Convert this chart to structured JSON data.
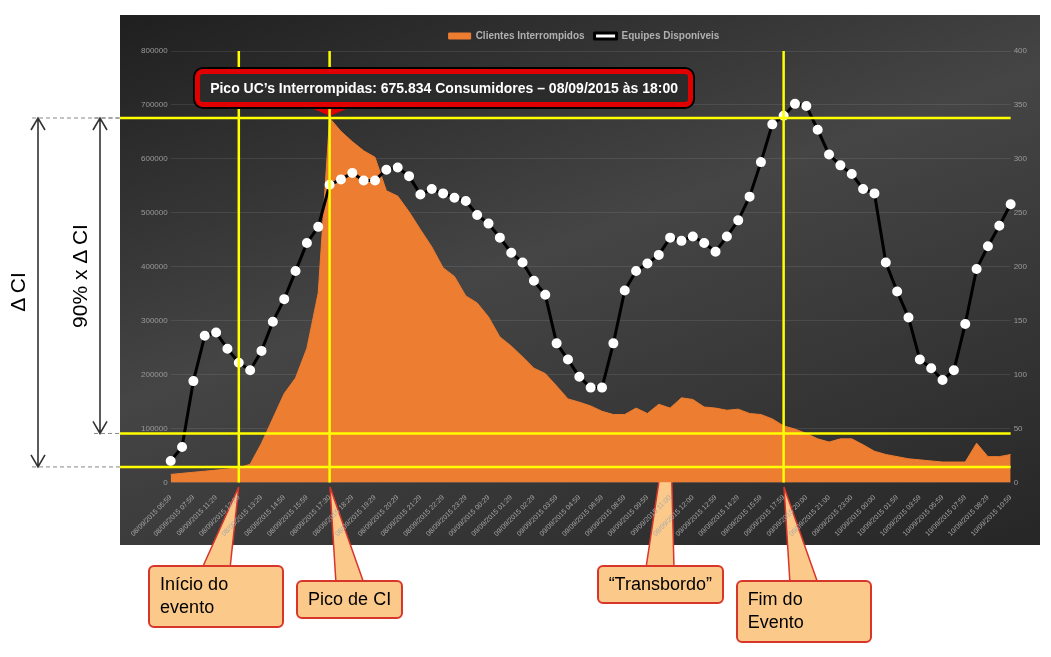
{
  "chart_data": {
    "type": "area",
    "legend": "top",
    "grid": "y",
    "categories": [
      "08/09/2015 05:59",
      null,
      "08/09/2015 07:59",
      null,
      "08/09/2015 11:29",
      null,
      "08/09/2015 12:29",
      null,
      "08/09/2015 13:29",
      null,
      "08/09/2015 14:59",
      null,
      "08/09/2015 15:59",
      null,
      "08/09/2015 17:30",
      null,
      "08/09/2015 18:29",
      null,
      "08/09/2015 19:29",
      null,
      "08/09/2015 20:29",
      null,
      "08/09/2015 21:29",
      null,
      "08/09/2015 22:29",
      null,
      "08/09/2015 23:29",
      null,
      "09/09/2015 00:29",
      null,
      "09/09/2015 01:29",
      null,
      "09/09/2015 02:29",
      null,
      "09/09/2015 03:59",
      null,
      "09/09/2015 04:59",
      null,
      "09/09/2015 06:59",
      null,
      "09/09/2015 08:59",
      null,
      "09/09/2015 09:59",
      null,
      "09/09/2015 11:00",
      null,
      "09/09/2015 12:00",
      null,
      "09/09/2015 12:59",
      null,
      "09/09/2015 14:29",
      null,
      "09/09/2015 15:59",
      null,
      "09/09/2015 17:59",
      null,
      "09/09/2015 20:00",
      null,
      "09/09/2015 21:00",
      null,
      "09/09/2015 23:00",
      null,
      "10/09/2015 00:00",
      null,
      "10/09/2015 01:59",
      null,
      "10/09/2015 03:59",
      null,
      "10/09/2015 05:59",
      null,
      "10/09/2015 07:59",
      null,
      "10/09/2015 08:29",
      null,
      "10/09/2015 10:59"
    ],
    "series": [
      {
        "name": "Clientes Interrompidos",
        "color": "#ed7d31",
        "values": [
          15000,
          17000,
          19000,
          21000,
          23000,
          25000,
          27000,
          34000,
          73000,
          119000,
          165000,
          194000,
          249000,
          352000,
          675834,
          651000,
          632000,
          615000,
          603000,
          541000,
          531000,
          502000,
          469000,
          437000,
          398000,
          382000,
          346000,
          333000,
          307000,
          270000,
          253000,
          233000,
          212000,
          202000,
          179000,
          155000,
          149000,
          142000,
          132000,
          126000,
          126000,
          138000,
          128000,
          145000,
          138000,
          157000,
          154000,
          140000,
          138000,
          134000,
          136000,
          128000,
          126000,
          118000,
          105000,
          99000,
          91000,
          81000,
          75000,
          81000,
          81000,
          70000,
          58000,
          52000,
          48000,
          44000,
          42000,
          40000,
          38000,
          38000,
          38000,
          73000,
          48000,
          48000,
          52000
        ]
      },
      {
        "name": "Equipes Disponíveis",
        "type": "line",
        "marker": "circle",
        "axis": "y2",
        "color": "#000000",
        "values": [
          20,
          33,
          94,
          136,
          139,
          124,
          111,
          104,
          122,
          149,
          170,
          196,
          222,
          237,
          276,
          281,
          287,
          280,
          280,
          290,
          292,
          284,
          267,
          272,
          268,
          264,
          261,
          248,
          240,
          227,
          213,
          204,
          187,
          174,
          129,
          114,
          98,
          88,
          88,
          129,
          178,
          196,
          203,
          211,
          227,
          224,
          228,
          222,
          214,
          228,
          243,
          265,
          297,
          332,
          340,
          351,
          349,
          327,
          304,
          294,
          286,
          272,
          268,
          204,
          177,
          153,
          114,
          106,
          95,
          104,
          147,
          198,
          219,
          238,
          258
        ]
      }
    ],
    "ylim": [
      0,
      800000
    ],
    "yticks": [
      0,
      100000,
      200000,
      300000,
      400000,
      500000,
      600000,
      700000,
      800000
    ],
    "y2lim": [
      0,
      400
    ],
    "y2ticks": [
      0,
      50,
      100,
      150,
      200,
      250,
      300,
      350,
      400
    ],
    "ref_lines": [
      {
        "axis": "y",
        "value": 675834,
        "color": "#ffff00",
        "label": "Pico UC’s Interrompidas: 675.834 Consumidores – 08/09/2015 às 18:00"
      },
      {
        "axis": "y",
        "value": 29000,
        "color": "#ffff00"
      },
      {
        "axis": "y",
        "value": 91000,
        "color": "#ffff00"
      },
      {
        "axis": "x",
        "value": "08/09/2015 12:29",
        "color": "#ffff00",
        "label": "Início do evento"
      },
      {
        "axis": "x",
        "value": "08/09/2015 17:30",
        "color": "#ffff00",
        "label": "Pico de CI"
      },
      {
        "axis": "x",
        "value": "09/09/2015 17:59",
        "color": "#ffff00",
        "label": "Fim do Evento"
      }
    ],
    "annotations": [
      {
        "text": "“Transbordo”",
        "x": "09/09/2015 11:00",
        "y": 138000
      },
      "Δ CI",
      "90% x Δ CI"
    ]
  }
}
